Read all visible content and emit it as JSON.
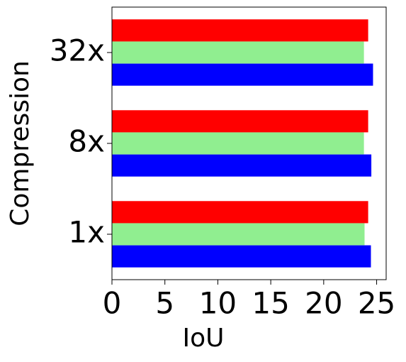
{
  "chart_data": {
    "type": "barh",
    "xlabel": "IoU",
    "ylabel": "Compression",
    "categories": [
      "1x",
      "8x",
      "32x"
    ],
    "series": [
      {
        "color": "#0000ff",
        "values": [
          24.46,
          24.5,
          24.66
        ]
      },
      {
        "color": "#90ee90",
        "values": [
          23.86,
          23.8,
          23.8
        ]
      },
      {
        "color": "#ff0000",
        "values": [
          24.2,
          24.2,
          24.2
        ]
      }
    ],
    "xlim": [
      0,
      25.9
    ],
    "xticks": [
      0,
      5,
      10,
      15,
      20,
      25
    ],
    "grid": false
  }
}
